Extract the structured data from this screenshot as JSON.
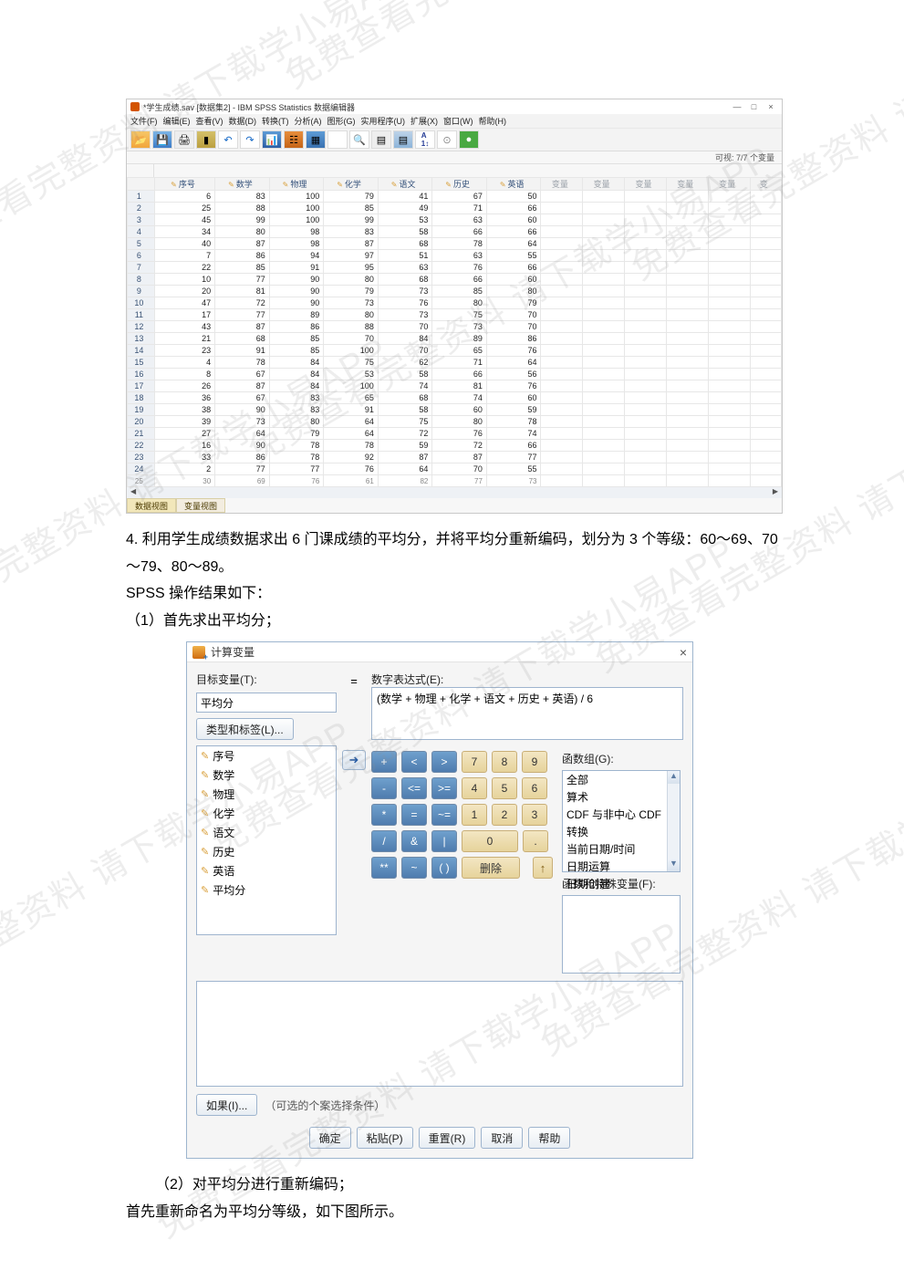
{
  "watermark_text": "免费查看完整资料 请下载学小易APP",
  "spss": {
    "title": "*学生成绩.sav [数据集2] - IBM SPSS Statistics 数据编辑器",
    "menu": [
      "文件(F)",
      "编辑(E)",
      "查看(V)",
      "数据(D)",
      "转换(T)",
      "分析(A)",
      "图形(G)",
      "实用程序(U)",
      "扩展(X)",
      "窗口(W)",
      "帮助(H)"
    ],
    "visible": "可视: 7/7 个变量",
    "columns": [
      "序号",
      "数学",
      "物理",
      "化学",
      "语文",
      "历史",
      "英语"
    ],
    "varcols": [
      "变量",
      "变量",
      "变量",
      "变量",
      "变量",
      "变"
    ],
    "rows": [
      [
        6,
        83,
        100,
        79,
        41,
        67,
        50
      ],
      [
        25,
        88,
        100,
        85,
        49,
        71,
        66
      ],
      [
        45,
        99,
        100,
        99,
        53,
        63,
        60
      ],
      [
        34,
        80,
        98,
        83,
        58,
        66,
        66
      ],
      [
        40,
        87,
        98,
        87,
        68,
        78,
        64
      ],
      [
        7,
        86,
        94,
        97,
        51,
        63,
        55
      ],
      [
        22,
        85,
        91,
        95,
        63,
        76,
        66
      ],
      [
        10,
        77,
        90,
        80,
        68,
        66,
        60
      ],
      [
        20,
        81,
        90,
        79,
        73,
        85,
        80
      ],
      [
        47,
        72,
        90,
        73,
        76,
        80,
        79
      ],
      [
        17,
        77,
        89,
        80,
        73,
        75,
        70
      ],
      [
        43,
        87,
        86,
        88,
        70,
        73,
        70
      ],
      [
        21,
        68,
        85,
        70,
        84,
        89,
        86
      ],
      [
        23,
        91,
        85,
        100,
        70,
        65,
        76
      ],
      [
        4,
        78,
        84,
        75,
        62,
        71,
        64
      ],
      [
        8,
        67,
        84,
        53,
        58,
        66,
        56
      ],
      [
        26,
        87,
        84,
        100,
        74,
        81,
        76
      ],
      [
        36,
        67,
        83,
        65,
        68,
        74,
        60
      ],
      [
        38,
        90,
        83,
        91,
        58,
        60,
        59
      ],
      [
        39,
        73,
        80,
        64,
        75,
        80,
        78
      ],
      [
        27,
        64,
        79,
        64,
        72,
        76,
        74
      ],
      [
        16,
        90,
        78,
        78,
        59,
        72,
        66
      ],
      [
        33,
        86,
        78,
        92,
        87,
        87,
        77
      ],
      [
        2,
        77,
        77,
        76,
        64,
        70,
        55
      ],
      [
        30,
        69,
        76,
        61,
        82,
        77,
        73
      ]
    ],
    "tabs": {
      "data": "数据视图",
      "var": "变量视图"
    }
  },
  "body": {
    "p1": "4. 利用学生成绩数据求出 6 门课成绩的平均分，并将平均分重新编码，划分为 3 个等级：60～69、70～79、80～89。",
    "p2": "SPSS 操作结果如下：",
    "p3": "（1）首先求出平均分；",
    "p4": "（2）对平均分进行重新编码；",
    "p5": "首先重新命名为平均分等级，如下图所示。"
  },
  "dlg": {
    "title": "计算变量",
    "target_label": "目标变量(T):",
    "target_value": "平均分",
    "type_label_btn": "类型和标签(L)...",
    "expr_label": "数字表达式(E):",
    "expr_value": "(数学 + 物理 + 化学 + 语文 + 历史 + 英语) / 6",
    "vars": [
      "序号",
      "数学",
      "物理",
      "化学",
      "语文",
      "历史",
      "英语",
      "平均分"
    ],
    "func_group_label": "函数组(G):",
    "func_groups": [
      "全部",
      "算术",
      "CDF 与非中心 CDF",
      "转换",
      "当前日期/时间",
      "日期运算",
      "日期创建"
    ],
    "func_special_label": "函数和特殊变量(F):",
    "if_btn": "如果(I)...",
    "if_text": "（可选的个案选择条件）",
    "delete_btn": "删除",
    "ok": "确定",
    "paste": "粘贴(P)",
    "reset": "重置(R)",
    "cancel": "取消",
    "help": "帮助",
    "keypad": {
      "r1": [
        "+",
        "<",
        ">",
        "7",
        "8",
        "9"
      ],
      "r2": [
        "-",
        "<=",
        ">=",
        "4",
        "5",
        "6"
      ],
      "r3": [
        "*",
        "=",
        "~=",
        "1",
        "2",
        "3"
      ],
      "r4": [
        "/",
        "&",
        "|",
        "0",
        "."
      ],
      "r5": [
        "**",
        "~",
        "( )"
      ]
    }
  }
}
